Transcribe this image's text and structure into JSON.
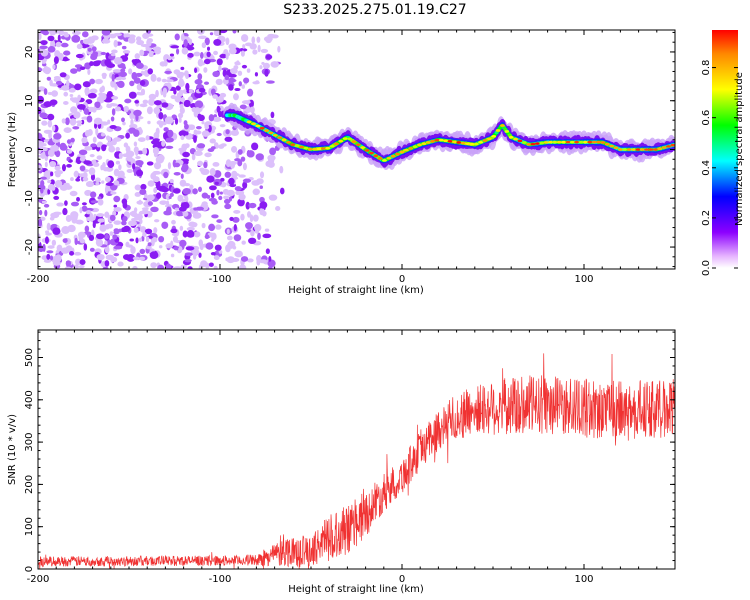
{
  "title": "S233.2025.275.01.19.C27",
  "chart_data": [
    {
      "type": "heatmap",
      "name": "spectrogram",
      "xlabel": "Height of straight line (km)",
      "ylabel": "Frequency (Hz)",
      "xlim": [
        -200,
        150
      ],
      "ylim": [
        -24.5,
        24.5
      ],
      "xticks": [
        -200,
        -100,
        0,
        100
      ],
      "yticks": [
        -20,
        -10,
        0,
        10,
        20
      ],
      "colorbar": {
        "label": "Normalized spectral amplitude",
        "range": [
          0,
          0.95
        ],
        "ticks": [
          "0.0",
          "0.2",
          "0.4",
          "0.6",
          "0.8"
        ],
        "tick_values": [
          0,
          0.2,
          0.4,
          0.6,
          0.8
        ]
      },
      "noise_region": {
        "x_range": [
          -200,
          -75
        ],
        "amplitude": 0.1
      },
      "tone_line": {
        "x": [
          -92,
          -80,
          -70,
          -60,
          -50,
          -40,
          -30,
          -20,
          -10,
          0,
          10,
          20,
          30,
          40,
          50,
          55,
          60,
          70,
          80,
          90,
          100,
          110,
          120,
          130,
          140,
          150
        ],
        "freq": [
          7,
          5,
          3,
          1,
          0,
          0.3,
          2.5,
          0,
          -2.3,
          -0.5,
          1,
          2,
          1.5,
          1,
          2.5,
          5,
          2.5,
          1,
          1.5,
          1.5,
          1.5,
          1.5,
          0,
          0,
          0,
          1
        ]
      }
    },
    {
      "type": "line",
      "name": "snr",
      "xlabel": "Height of straight line (km)",
      "ylabel": "SNR (10 * v/v)",
      "xlim": [
        -200,
        150
      ],
      "ylim": [
        0,
        565
      ],
      "xticks": [
        -200,
        -100,
        0,
        100
      ],
      "yticks": [
        0,
        100,
        200,
        300,
        400,
        500
      ],
      "color": "#f03232",
      "envelope": {
        "x": [
          -200,
          -90,
          -78,
          -70,
          -60,
          -50,
          -40,
          -30,
          -20,
          -10,
          0,
          10,
          20,
          30,
          40,
          50,
          60,
          80,
          100,
          120,
          150
        ],
        "mean": [
          18,
          20,
          22,
          35,
          45,
          40,
          80,
          90,
          130,
          180,
          220,
          280,
          330,
          360,
          375,
          380,
          385,
          390,
          380,
          375,
          380
        ],
        "spread": [
          12,
          12,
          14,
          30,
          40,
          35,
          55,
          60,
          55,
          45,
          45,
          45,
          50,
          55,
          60,
          65,
          70,
          70,
          70,
          70,
          70
        ]
      }
    }
  ]
}
